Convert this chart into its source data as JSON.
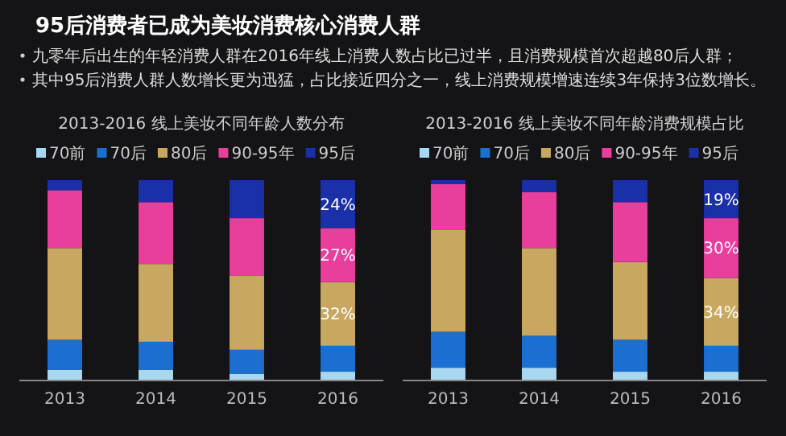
{
  "chart_data": [
    {
      "type": "other",
      "title": "95后消费者已成为美妆消费核心消费人群",
      "annotations": [
        "九零年后出生的年轻消费人群在2016年线上消费人数占比已过半，且消费规模首次超越80后人群；",
        "其中95后消费人群人数增长更为迅猛，占比接近四分之一，线上消费规模增速连续3年保持3位数增长。"
      ]
    },
    {
      "type": "bar",
      "stacked": true,
      "legend": "top",
      "title": "2013-2016 线上美妆不同年龄人数分布",
      "categories": [
        "2013",
        "2014",
        "2015",
        "2016"
      ],
      "series": [
        {
          "name": "70前",
          "color": "#a8d8f0",
          "values": [
            5,
            5,
            3,
            4
          ]
        },
        {
          "name": "70后",
          "color": "#1a6fd0",
          "values": [
            15,
            14,
            12,
            13
          ]
        },
        {
          "name": "80后",
          "color": "#c8a860",
          "values": [
            46,
            39,
            37,
            32
          ],
          "value_labels": [
            null,
            null,
            null,
            "32%"
          ]
        },
        {
          "name": "90-95年",
          "color": "#e83e9c",
          "values": [
            29,
            31,
            29,
            27
          ],
          "value_labels": [
            null,
            null,
            null,
            "27%"
          ]
        },
        {
          "name": "95后",
          "color": "#1a2fa8",
          "values": [
            5,
            11,
            19,
            24
          ],
          "value_labels": [
            null,
            null,
            null,
            "24%"
          ]
        }
      ]
    },
    {
      "type": "bar",
      "stacked": true,
      "legend": "top",
      "title": "2013-2016 线上美妆不同年龄消费规模占比",
      "categories": [
        "2013",
        "2014",
        "2015",
        "2016"
      ],
      "series": [
        {
          "name": "70前",
          "color": "#a8d8f0",
          "values": [
            6,
            6,
            4,
            4
          ]
        },
        {
          "name": "70后",
          "color": "#1a6fd0",
          "values": [
            18,
            16,
            16,
            13
          ]
        },
        {
          "name": "80后",
          "color": "#c8a860",
          "values": [
            51,
            44,
            39,
            34
          ],
          "value_labels": [
            null,
            null,
            null,
            "34%"
          ]
        },
        {
          "name": "90-95年",
          "color": "#e83e9c",
          "values": [
            23,
            28,
            30,
            30
          ],
          "value_labels": [
            null,
            null,
            null,
            "30%"
          ]
        },
        {
          "name": "95后",
          "color": "#1a2fa8",
          "values": [
            2,
            6,
            11,
            19
          ],
          "value_labels": [
            null,
            null,
            null,
            "19%"
          ]
        }
      ]
    }
  ]
}
